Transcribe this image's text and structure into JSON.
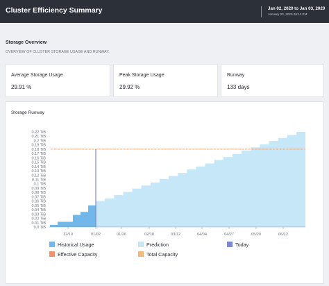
{
  "header": {
    "title": "Cluster Efficiency Summary",
    "date_range": "Jan 02, 2020 to Jan 03, 2020",
    "generated": "January 03, 2020 09:12 PM"
  },
  "overview": {
    "title": "Storage Overview",
    "description": "OVERVIEW OF CLUSTER STORAGE USAGE AND RUNWAY."
  },
  "cards": [
    {
      "label": "Average Storage Usage",
      "value": "29.91 %"
    },
    {
      "label": "Peak Storage Usage",
      "value": "29.92 %"
    },
    {
      "label": "Runway",
      "value": "133 days"
    }
  ],
  "chart_title": "Storage Runway",
  "colors": {
    "historical": "#72b7ea",
    "prediction": "#c6e7f8",
    "today": "#7b86d6",
    "effective_capacity": "#f0926f",
    "total_capacity": "#f2b87e"
  },
  "chart_data": {
    "type": "area",
    "title": "Storage Runway",
    "ylim": [
      0,
      0.22
    ],
    "yticks": [
      "0.0 TiB",
      "0.01 TiB",
      "0.02 TiB",
      "0.03 TiB",
      "0.04 TiB",
      "0.05 TiB",
      "0.06 TiB",
      "0.07 TiB",
      "0.08 TiB",
      "0.09 TiB",
      "0.1 TiB",
      "0.11 TiB",
      "0.12 TiB",
      "0.13 TiB",
      "0.14 TiB",
      "0.15 TiB",
      "0.16 TiB",
      "0.17 TiB",
      "0.18 TiB",
      "0.19 TiB",
      "0.2 TiB",
      "0.21 TiB",
      "0.22 TiB"
    ],
    "ytick_values": [
      0,
      0.01,
      0.02,
      0.03,
      0.04,
      0.05,
      0.06,
      0.07,
      0.08,
      0.09,
      0.1,
      0.11,
      0.12,
      0.13,
      0.14,
      0.15,
      0.16,
      0.17,
      0.18,
      0.19,
      0.2,
      0.21,
      0.22
    ],
    "xticks": [
      "12/10",
      "01/02",
      "01/26",
      "02/18",
      "03/12",
      "04/04",
      "04/27",
      "05/20",
      "06/12"
    ],
    "effective_capacity": 0.18,
    "total_capacity": 0.18,
    "today": "01/02",
    "series": [
      {
        "name": "Historical Usage",
        "steps": [
          0.005,
          0.012,
          0.012,
          0.028,
          0.035,
          0.05
        ]
      },
      {
        "name": "Prediction",
        "steps": [
          0.06,
          0.066,
          0.074,
          0.081,
          0.089,
          0.096,
          0.103,
          0.111,
          0.118,
          0.125,
          0.133,
          0.14,
          0.147,
          0.155,
          0.162,
          0.169,
          0.177,
          0.184,
          0.191,
          0.199,
          0.206,
          0.213,
          0.22
        ]
      }
    ],
    "legend": [
      "Historical Usage",
      "Prediction",
      "Today",
      "Effective Capacity",
      "Total Capacity"
    ]
  }
}
